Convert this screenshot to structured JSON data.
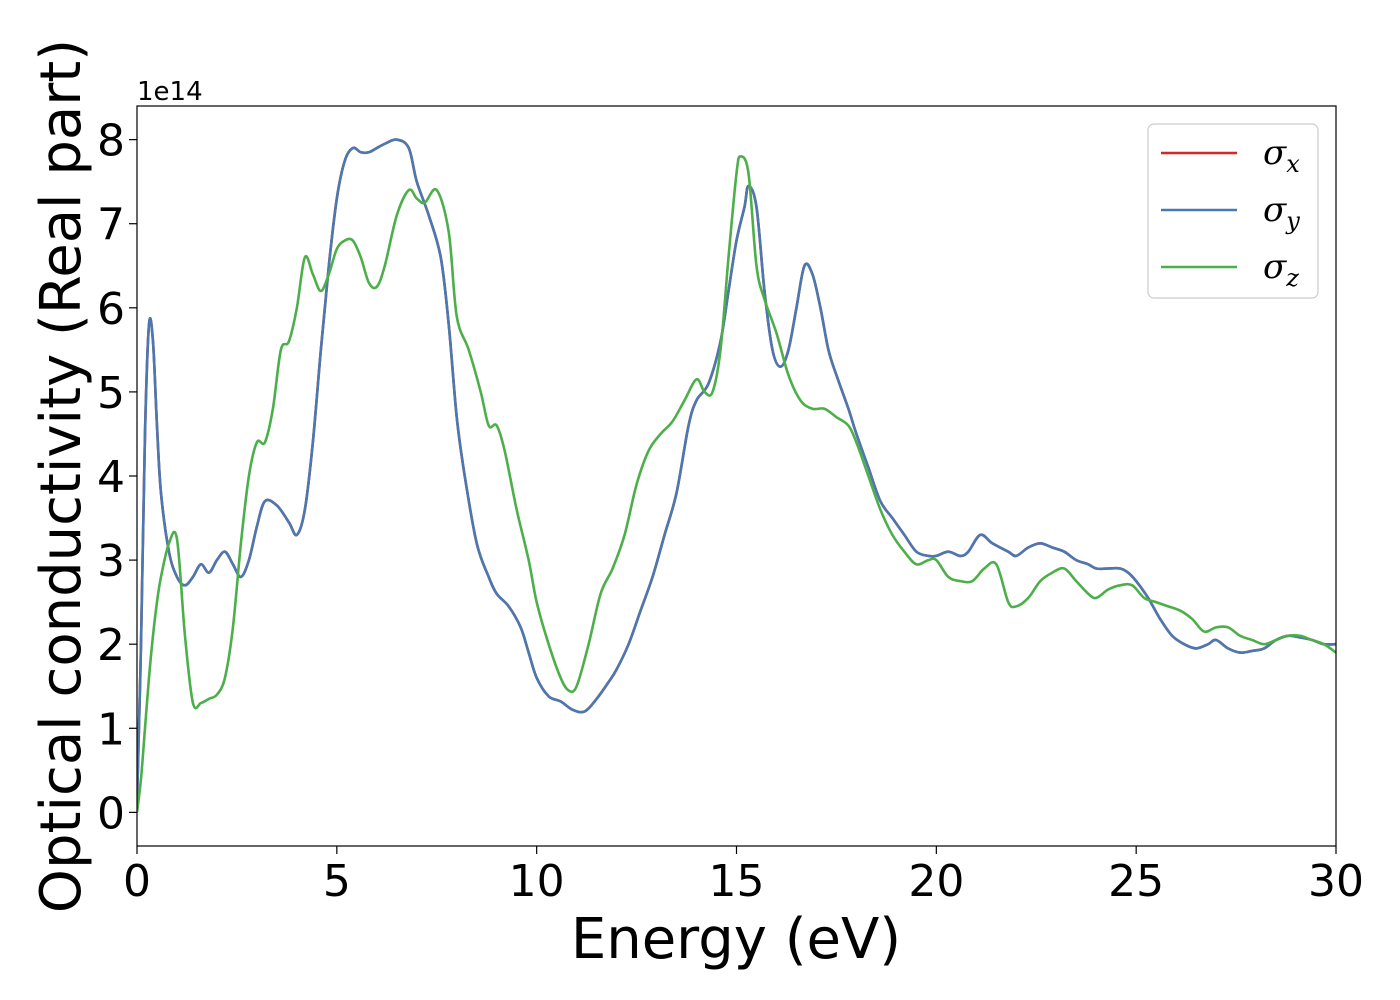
{
  "chart_data": {
    "type": "line",
    "xlabel": "Energy (eV)",
    "ylabel": "Optical conductivity (Real part)",
    "y_offset_label": "1e14",
    "xlim": [
      0,
      30
    ],
    "ylim": [
      -0.4,
      8.4
    ],
    "x_ticks": [
      0,
      5,
      10,
      15,
      20,
      25,
      30
    ],
    "x_tick_labels": [
      "0",
      "5",
      "10",
      "15",
      "20",
      "25",
      "30"
    ],
    "y_ticks": [
      0,
      1,
      2,
      3,
      4,
      5,
      6,
      7,
      8
    ],
    "y_tick_labels": [
      "0",
      "1",
      "2",
      "3",
      "4",
      "5",
      "6",
      "7",
      "8"
    ],
    "grid": false,
    "legend_position": "top-right",
    "series": [
      {
        "name": "σx",
        "symbol": "σ",
        "subscript": "x",
        "color": "#d62728",
        "x": [
          0,
          0.1,
          0.2,
          0.3,
          0.4,
          0.5,
          0.6,
          0.8,
          1.0,
          1.2,
          1.4,
          1.6,
          1.8,
          2.0,
          2.2,
          2.4,
          2.6,
          2.8,
          3.0,
          3.2,
          3.5,
          3.8,
          4.0,
          4.2,
          4.4,
          4.6,
          4.8,
          5.0,
          5.2,
          5.4,
          5.6,
          5.8,
          6.0,
          6.2,
          6.5,
          6.8,
          7.0,
          7.3,
          7.6,
          7.8,
          8.0,
          8.2,
          8.5,
          8.8,
          9.0,
          9.3,
          9.6,
          9.8,
          10.0,
          10.3,
          10.6,
          10.9,
          11.2,
          11.5,
          11.8,
          12.0,
          12.3,
          12.6,
          12.9,
          13.2,
          13.5,
          13.8,
          14.0,
          14.3,
          14.6,
          14.8,
          15.0,
          15.2,
          15.3,
          15.5,
          15.7,
          15.9,
          16.1,
          16.3,
          16.5,
          16.7,
          16.9,
          17.1,
          17.3,
          17.5,
          17.8,
          18.0,
          18.3,
          18.6,
          18.9,
          19.2,
          19.5,
          19.8,
          20.0,
          20.3,
          20.6,
          20.8,
          21.1,
          21.4,
          21.8,
          22.0,
          22.3,
          22.6,
          22.9,
          23.2,
          23.5,
          23.8,
          24.0,
          24.3,
          24.6,
          24.8,
          25.0,
          25.3,
          25.6,
          25.9,
          26.2,
          26.5,
          26.8,
          27.0,
          27.3,
          27.6,
          27.9,
          28.2,
          28.5,
          28.8,
          29.1,
          29.4,
          29.7,
          30.0
        ],
        "values": [
          0.1,
          2.0,
          4.5,
          5.8,
          5.6,
          4.6,
          3.8,
          3.1,
          2.8,
          2.7,
          2.8,
          2.95,
          2.85,
          3.0,
          3.1,
          2.95,
          2.8,
          3.0,
          3.4,
          3.7,
          3.65,
          3.45,
          3.3,
          3.6,
          4.4,
          5.5,
          6.5,
          7.3,
          7.75,
          7.9,
          7.85,
          7.85,
          7.9,
          7.95,
          8.0,
          7.9,
          7.5,
          7.1,
          6.6,
          5.8,
          4.7,
          4.0,
          3.2,
          2.8,
          2.6,
          2.45,
          2.2,
          1.9,
          1.6,
          1.38,
          1.32,
          1.22,
          1.2,
          1.35,
          1.55,
          1.7,
          2.0,
          2.4,
          2.8,
          3.3,
          3.8,
          4.6,
          4.9,
          5.1,
          5.6,
          6.2,
          6.8,
          7.2,
          7.45,
          7.2,
          6.2,
          5.5,
          5.3,
          5.5,
          6.0,
          6.5,
          6.4,
          6.0,
          5.5,
          5.2,
          4.8,
          4.5,
          4.1,
          3.7,
          3.5,
          3.3,
          3.1,
          3.05,
          3.05,
          3.1,
          3.05,
          3.1,
          3.3,
          3.2,
          3.1,
          3.05,
          3.15,
          3.2,
          3.15,
          3.1,
          3.0,
          2.95,
          2.9,
          2.9,
          2.9,
          2.85,
          2.75,
          2.55,
          2.3,
          2.1,
          2.0,
          1.95,
          2.0,
          2.05,
          1.95,
          1.9,
          1.92,
          1.95,
          2.05,
          2.1,
          2.08,
          2.05,
          2.0,
          2.0
        ]
      },
      {
        "name": "σy",
        "symbol": "σ",
        "subscript": "y",
        "color": "#4a78b0",
        "x": [
          0,
          0.1,
          0.2,
          0.3,
          0.4,
          0.5,
          0.6,
          0.8,
          1.0,
          1.2,
          1.4,
          1.6,
          1.8,
          2.0,
          2.2,
          2.4,
          2.6,
          2.8,
          3.0,
          3.2,
          3.5,
          3.8,
          4.0,
          4.2,
          4.4,
          4.6,
          4.8,
          5.0,
          5.2,
          5.4,
          5.6,
          5.8,
          6.0,
          6.2,
          6.5,
          6.8,
          7.0,
          7.3,
          7.6,
          7.8,
          8.0,
          8.2,
          8.5,
          8.8,
          9.0,
          9.3,
          9.6,
          9.8,
          10.0,
          10.3,
          10.6,
          10.9,
          11.2,
          11.5,
          11.8,
          12.0,
          12.3,
          12.6,
          12.9,
          13.2,
          13.5,
          13.8,
          14.0,
          14.3,
          14.6,
          14.8,
          15.0,
          15.2,
          15.3,
          15.5,
          15.7,
          15.9,
          16.1,
          16.3,
          16.5,
          16.7,
          16.9,
          17.1,
          17.3,
          17.5,
          17.8,
          18.0,
          18.3,
          18.6,
          18.9,
          19.2,
          19.5,
          19.8,
          20.0,
          20.3,
          20.6,
          20.8,
          21.1,
          21.4,
          21.8,
          22.0,
          22.3,
          22.6,
          22.9,
          23.2,
          23.5,
          23.8,
          24.0,
          24.3,
          24.6,
          24.8,
          25.0,
          25.3,
          25.6,
          25.9,
          26.2,
          26.5,
          26.8,
          27.0,
          27.3,
          27.6,
          27.9,
          28.2,
          28.5,
          28.8,
          29.1,
          29.4,
          29.7,
          30.0
        ],
        "values": [
          0.1,
          2.0,
          4.5,
          5.8,
          5.6,
          4.6,
          3.8,
          3.1,
          2.8,
          2.7,
          2.8,
          2.95,
          2.85,
          3.0,
          3.1,
          2.95,
          2.8,
          3.0,
          3.4,
          3.7,
          3.65,
          3.45,
          3.3,
          3.6,
          4.4,
          5.5,
          6.5,
          7.3,
          7.75,
          7.9,
          7.85,
          7.85,
          7.9,
          7.95,
          8.0,
          7.9,
          7.5,
          7.1,
          6.6,
          5.8,
          4.7,
          4.0,
          3.2,
          2.8,
          2.6,
          2.45,
          2.2,
          1.9,
          1.6,
          1.38,
          1.32,
          1.22,
          1.2,
          1.35,
          1.55,
          1.7,
          2.0,
          2.4,
          2.8,
          3.3,
          3.8,
          4.6,
          4.9,
          5.1,
          5.6,
          6.2,
          6.8,
          7.2,
          7.45,
          7.2,
          6.2,
          5.5,
          5.3,
          5.5,
          6.0,
          6.5,
          6.4,
          6.0,
          5.5,
          5.2,
          4.8,
          4.5,
          4.1,
          3.7,
          3.5,
          3.3,
          3.1,
          3.05,
          3.05,
          3.1,
          3.05,
          3.1,
          3.3,
          3.2,
          3.1,
          3.05,
          3.15,
          3.2,
          3.15,
          3.1,
          3.0,
          2.95,
          2.9,
          2.9,
          2.9,
          2.85,
          2.75,
          2.55,
          2.3,
          2.1,
          2.0,
          1.95,
          2.0,
          2.05,
          1.95,
          1.9,
          1.92,
          1.95,
          2.05,
          2.1,
          2.08,
          2.05,
          2.0,
          2.0
        ]
      },
      {
        "name": "σz",
        "symbol": "σ",
        "subscript": "z",
        "color": "#4daf4a",
        "x": [
          0,
          0.1,
          0.2,
          0.3,
          0.4,
          0.5,
          0.6,
          0.8,
          1.0,
          1.2,
          1.4,
          1.6,
          1.8,
          2.0,
          2.2,
          2.4,
          2.6,
          2.8,
          3.0,
          3.2,
          3.4,
          3.6,
          3.8,
          4.0,
          4.2,
          4.4,
          4.6,
          4.8,
          5.0,
          5.2,
          5.4,
          5.6,
          5.8,
          6.0,
          6.2,
          6.5,
          6.8,
          7.0,
          7.2,
          7.5,
          7.8,
          8.0,
          8.3,
          8.6,
          8.8,
          9.0,
          9.2,
          9.5,
          9.8,
          10.0,
          10.3,
          10.6,
          10.8,
          11.0,
          11.3,
          11.6,
          11.9,
          12.2,
          12.5,
          12.8,
          13.1,
          13.4,
          13.7,
          14.0,
          14.2,
          14.4,
          14.6,
          14.8,
          15.0,
          15.1,
          15.3,
          15.5,
          15.7,
          16.0,
          16.3,
          16.6,
          16.9,
          17.2,
          17.5,
          17.8,
          18.0,
          18.3,
          18.6,
          18.9,
          19.2,
          19.5,
          19.8,
          20.0,
          20.3,
          20.6,
          20.9,
          21.2,
          21.5,
          21.8,
          22.0,
          22.3,
          22.6,
          22.9,
          23.2,
          23.5,
          23.8,
          24.0,
          24.3,
          24.6,
          24.9,
          25.2,
          25.5,
          25.8,
          26.1,
          26.4,
          26.7,
          27.0,
          27.3,
          27.6,
          27.9,
          28.2,
          28.5,
          28.8,
          29.1,
          29.4,
          29.7,
          30.0
        ],
        "values": [
          0,
          0.4,
          1.0,
          1.6,
          2.1,
          2.5,
          2.8,
          3.2,
          3.25,
          2.1,
          1.3,
          1.3,
          1.35,
          1.4,
          1.6,
          2.2,
          3.2,
          4.0,
          4.4,
          4.4,
          4.8,
          5.5,
          5.6,
          6.0,
          6.6,
          6.4,
          6.2,
          6.4,
          6.7,
          6.8,
          6.8,
          6.6,
          6.3,
          6.25,
          6.5,
          7.1,
          7.4,
          7.3,
          7.25,
          7.4,
          6.9,
          5.9,
          5.5,
          5.0,
          4.6,
          4.6,
          4.3,
          3.6,
          3.0,
          2.5,
          2.0,
          1.6,
          1.45,
          1.5,
          2.0,
          2.6,
          2.9,
          3.3,
          3.9,
          4.3,
          4.5,
          4.65,
          4.9,
          5.15,
          5.0,
          5.0,
          5.5,
          6.6,
          7.6,
          7.8,
          7.6,
          6.5,
          6.1,
          5.7,
          5.2,
          4.9,
          4.8,
          4.8,
          4.7,
          4.6,
          4.4,
          4.0,
          3.6,
          3.3,
          3.1,
          2.95,
          3.0,
          3.0,
          2.8,
          2.75,
          2.75,
          2.9,
          2.95,
          2.5,
          2.45,
          2.55,
          2.75,
          2.85,
          2.9,
          2.75,
          2.6,
          2.55,
          2.65,
          2.7,
          2.7,
          2.55,
          2.5,
          2.45,
          2.4,
          2.3,
          2.15,
          2.2,
          2.2,
          2.1,
          2.05,
          2.0,
          2.05,
          2.1,
          2.1,
          2.05,
          2.0,
          1.9
        ]
      }
    ]
  }
}
